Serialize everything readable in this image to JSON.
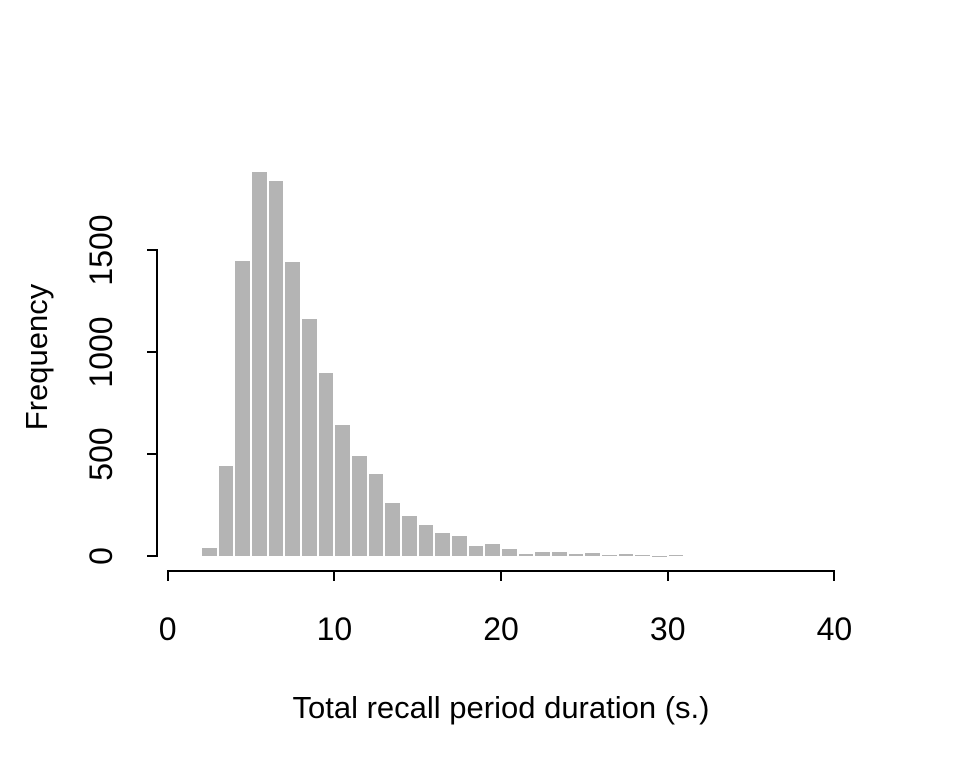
{
  "figure": {
    "background_color": "#ffffff",
    "axis_color": "#000000",
    "text_color": "#000000"
  },
  "chart_data": {
    "type": "bar",
    "subtype": "histogram",
    "title": "",
    "xlabel": "Total recall period duration (s.)",
    "ylabel": "Frequency",
    "bar_color": "#b4b4b4",
    "bar_gap_color": "#ffffff",
    "xlim": [
      0,
      40
    ],
    "ylim": [
      0,
      1900
    ],
    "grid": false,
    "legend": false,
    "x_tick_values": [
      0,
      10,
      20,
      30,
      40
    ],
    "x_tick_labels": [
      "0",
      "10",
      "20",
      "30",
      "40"
    ],
    "y_tick_values": [
      0,
      500,
      1000,
      1500
    ],
    "y_tick_labels": [
      "0",
      "500",
      "1000",
      "1500"
    ],
    "bin_width": 1,
    "bin_starts": [
      2,
      3,
      4,
      5,
      6,
      7,
      8,
      9,
      10,
      11,
      12,
      13,
      14,
      15,
      16,
      17,
      18,
      19,
      20,
      21,
      22,
      23,
      24,
      25,
      26,
      27,
      28,
      29,
      30
    ],
    "counts": [
      40,
      440,
      1445,
      1880,
      1840,
      1440,
      1160,
      895,
      640,
      490,
      400,
      260,
      195,
      150,
      115,
      100,
      50,
      58,
      33,
      10,
      18,
      22,
      10,
      13,
      5,
      8,
      5,
      2,
      6
    ]
  }
}
